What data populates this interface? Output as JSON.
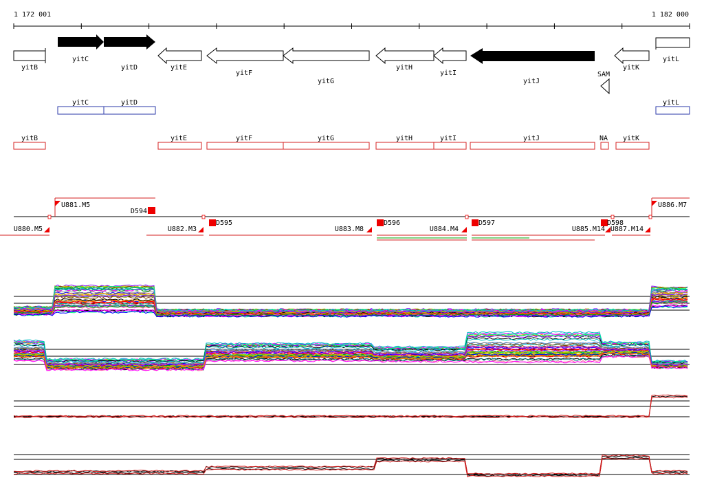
{
  "coordinates": {
    "start": "1 172 001",
    "end": "1 182 000"
  },
  "colors": {
    "gene_filled": "#000000",
    "gene_outline": "#000000",
    "blue_track": "#2b3aa8",
    "red_track": "#d42020",
    "segment_marker": "#ee0000",
    "signal_palette": [
      "#ff0000",
      "#00a000",
      "#0000ff",
      "#ff00ff",
      "#00c0c0",
      "#c0c000",
      "#ff8000",
      "#8000ff",
      "#008080",
      "#804000",
      "#ff60a0",
      "#60a0ff",
      "#a0a000",
      "#00ff80",
      "#808080",
      "#000000"
    ]
  },
  "genes": [
    {
      "name": "yitB",
      "strand": "+",
      "filled": false,
      "arrow": false
    },
    {
      "name": "yitC",
      "strand": "+",
      "filled": true
    },
    {
      "name": "yitD",
      "strand": "+",
      "filled": true
    },
    {
      "name": "yitE",
      "strand": "-",
      "filled": false
    },
    {
      "name": "yitF",
      "strand": "-",
      "filled": false
    },
    {
      "name": "yitG",
      "strand": "-",
      "filled": false
    },
    {
      "name": "yitH",
      "strand": "-",
      "filled": false
    },
    {
      "name": "yitI",
      "strand": "-",
      "filled": false
    },
    {
      "name": "yitJ",
      "strand": "-",
      "filled": true
    },
    {
      "name": "SAM",
      "strand": "-",
      "filled": false,
      "riboswitch": true
    },
    {
      "name": "yitK",
      "strand": "-",
      "filled": false
    },
    {
      "name": "yitL",
      "strand": "+",
      "filled": false,
      "arrow": false
    }
  ],
  "blue_track": [
    "yitC",
    "yitD",
    "yitL"
  ],
  "red_track": [
    "yitB",
    "yitE",
    "yitF",
    "yitG",
    "yitH",
    "yitI",
    "yitJ",
    "NA",
    "yitK"
  ],
  "segments_upper": [
    "U881.M5",
    "D594",
    "U886.M7"
  ],
  "segments_lower": [
    "U880.M5",
    "U882.M3",
    "D595",
    "U883.M8",
    "D596",
    "U884.M4",
    "D597",
    "U885.M14",
    "D598",
    "U887.M14"
  ],
  "signal_tracks": [
    {
      "name": "expression-panel-1",
      "trace_count": 40
    },
    {
      "name": "expression-panel-2",
      "trace_count": 40
    },
    {
      "name": "expression-panel-3",
      "trace_count": 3
    },
    {
      "name": "expression-panel-4",
      "trace_count": 4
    }
  ]
}
